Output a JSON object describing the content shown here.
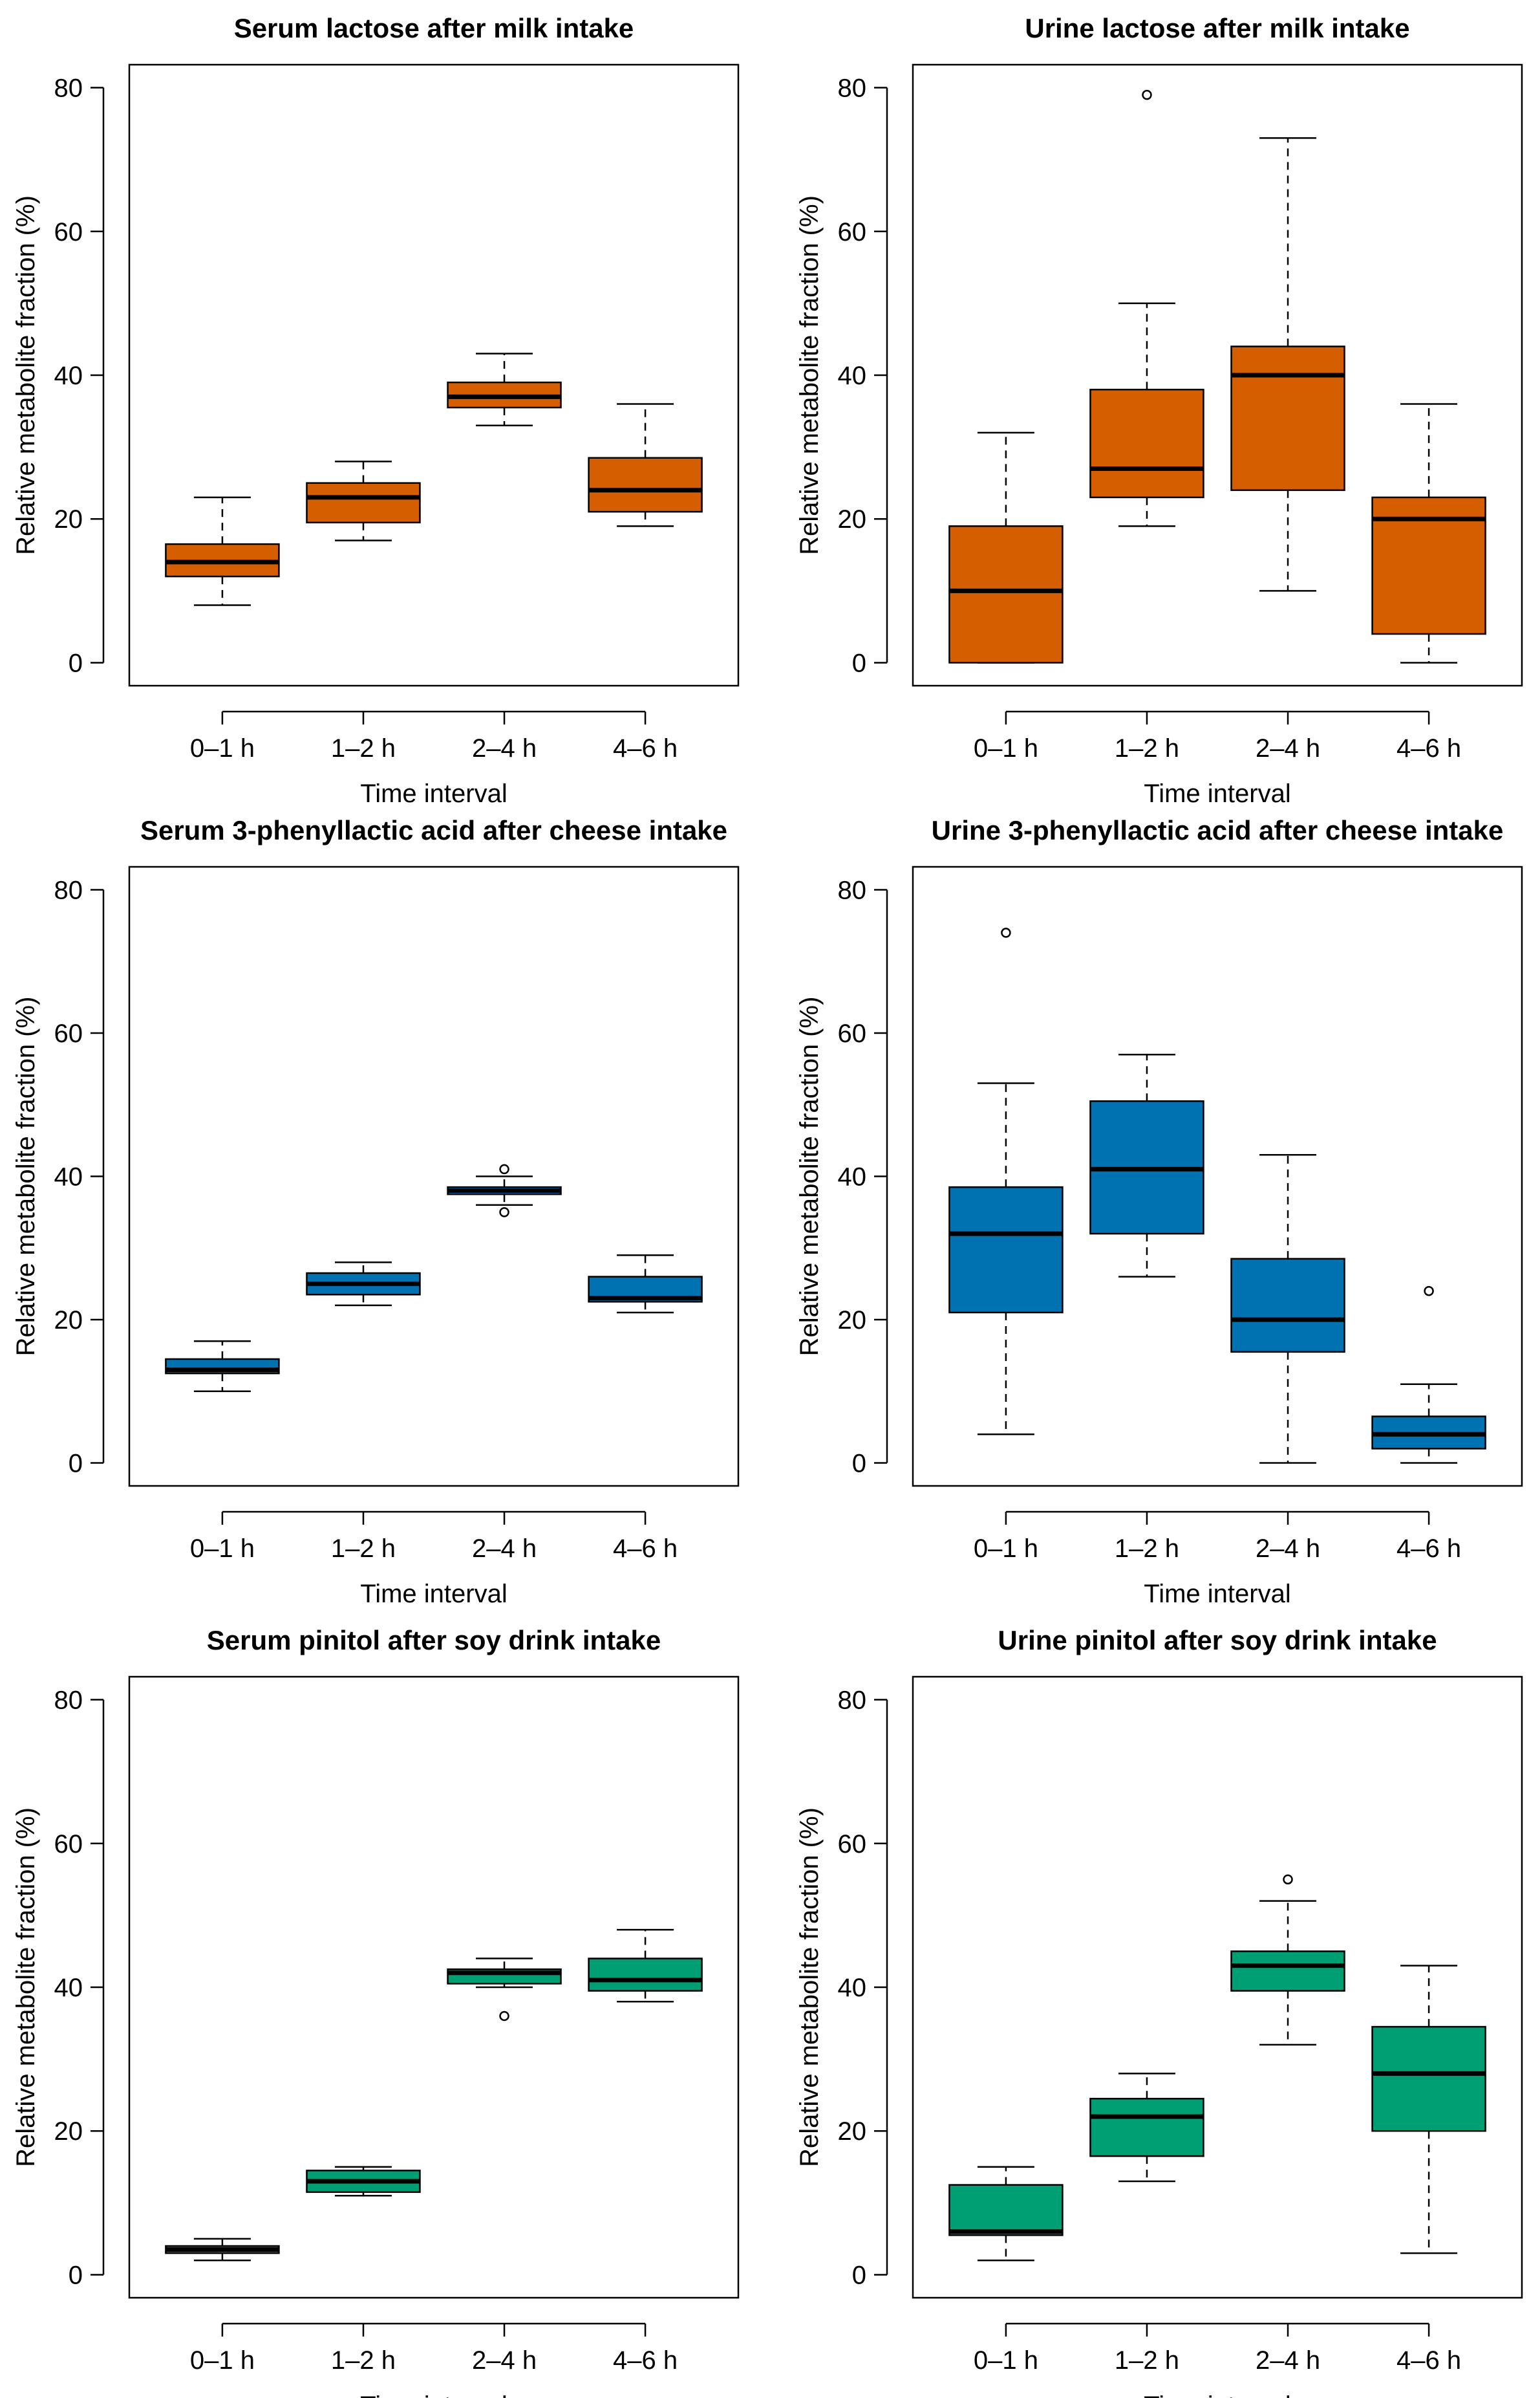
{
  "chart_data": [
    {
      "type": "box",
      "title": "Serum lactose after milk intake",
      "xlabel": "Time interval",
      "ylabel": "Relative metabolite fraction (%)",
      "ylim": [
        0,
        80
      ],
      "yticks": [
        0,
        20,
        40,
        60,
        80
      ],
      "color": "#D55E00",
      "categories": [
        "0–1 h",
        "1–2 h",
        "2–4 h",
        "4–6 h"
      ],
      "boxes": [
        {
          "min": 8,
          "q1": 12,
          "median": 14,
          "q3": 16.5,
          "max": 23,
          "outliers": []
        },
        {
          "min": 17,
          "q1": 19.5,
          "median": 23,
          "q3": 25,
          "max": 28,
          "outliers": []
        },
        {
          "min": 33,
          "q1": 35.5,
          "median": 37,
          "q3": 39,
          "max": 43,
          "outliers": []
        },
        {
          "min": 19,
          "q1": 21,
          "median": 24,
          "q3": 28.5,
          "max": 36,
          "outliers": []
        }
      ]
    },
    {
      "type": "box",
      "title": "Urine lactose after milk intake",
      "xlabel": "Time interval",
      "ylabel": "Relative metabolite fraction (%)",
      "ylim": [
        0,
        80
      ],
      "yticks": [
        0,
        20,
        40,
        60,
        80
      ],
      "color": "#D55E00",
      "categories": [
        "0–1 h",
        "1–2 h",
        "2–4 h",
        "4–6 h"
      ],
      "boxes": [
        {
          "min": 0,
          "q1": 0,
          "median": 10,
          "q3": 19,
          "max": 32,
          "outliers": []
        },
        {
          "min": 19,
          "q1": 23,
          "median": 27,
          "q3": 38,
          "max": 50,
          "outliers": [
            79
          ]
        },
        {
          "min": 10,
          "q1": 24,
          "median": 40,
          "q3": 44,
          "max": 73,
          "outliers": []
        },
        {
          "min": 0,
          "q1": 4,
          "median": 20,
          "q3": 23,
          "max": 36,
          "outliers": []
        }
      ]
    },
    {
      "type": "box",
      "title": "Serum 3-phenyllactic acid after cheese intake",
      "xlabel": "Time interval",
      "ylabel": "Relative metabolite fraction (%)",
      "ylim": [
        0,
        80
      ],
      "yticks": [
        0,
        20,
        40,
        60,
        80
      ],
      "color": "#0072B2",
      "categories": [
        "0–1 h",
        "1–2 h",
        "2–4 h",
        "4–6 h"
      ],
      "boxes": [
        {
          "min": 10,
          "q1": 12.5,
          "median": 13,
          "q3": 14.5,
          "max": 17,
          "outliers": []
        },
        {
          "min": 22,
          "q1": 23.5,
          "median": 25,
          "q3": 26.5,
          "max": 28,
          "outliers": []
        },
        {
          "min": 36,
          "q1": 37.5,
          "median": 38,
          "q3": 38.5,
          "max": 40,
          "outliers": [
            41,
            35
          ]
        },
        {
          "min": 21,
          "q1": 22.5,
          "median": 23,
          "q3": 26,
          "max": 29,
          "outliers": []
        }
      ]
    },
    {
      "type": "box",
      "title": "Urine 3-phenyllactic acid after cheese intake",
      "xlabel": "Time interval",
      "ylabel": "Relative metabolite fraction (%)",
      "ylim": [
        0,
        80
      ],
      "yticks": [
        0,
        20,
        40,
        60,
        80
      ],
      "color": "#0072B2",
      "categories": [
        "0–1 h",
        "1–2 h",
        "2–4 h",
        "4–6 h"
      ],
      "boxes": [
        {
          "min": 4,
          "q1": 21,
          "median": 32,
          "q3": 38.5,
          "max": 53,
          "outliers": [
            74
          ]
        },
        {
          "min": 26,
          "q1": 32,
          "median": 41,
          "q3": 50.5,
          "max": 57,
          "outliers": []
        },
        {
          "min": 0,
          "q1": 15.5,
          "median": 20,
          "q3": 28.5,
          "max": 43,
          "outliers": []
        },
        {
          "min": 0,
          "q1": 2,
          "median": 4,
          "q3": 6.5,
          "max": 11,
          "outliers": [
            24
          ]
        }
      ]
    },
    {
      "type": "box",
      "title": "Serum pinitol after soy drink intake",
      "xlabel": "Time interval",
      "ylabel": "Relative metabolite fraction (%)",
      "ylim": [
        0,
        80
      ],
      "yticks": [
        0,
        20,
        40,
        60,
        80
      ],
      "color": "#009E73",
      "categories": [
        "0–1 h",
        "1–2 h",
        "2–4 h",
        "4–6 h"
      ],
      "boxes": [
        {
          "min": 2,
          "q1": 3,
          "median": 3.5,
          "q3": 4,
          "max": 5,
          "outliers": []
        },
        {
          "min": 11,
          "q1": 11.5,
          "median": 13,
          "q3": 14.5,
          "max": 15,
          "outliers": []
        },
        {
          "min": 40,
          "q1": 40.5,
          "median": 42,
          "q3": 42.5,
          "max": 44,
          "outliers": [
            36
          ]
        },
        {
          "min": 38,
          "q1": 39.5,
          "median": 41,
          "q3": 44,
          "max": 48,
          "outliers": []
        }
      ]
    },
    {
      "type": "box",
      "title": "Urine pinitol after soy drink intake",
      "xlabel": "Time interval",
      "ylabel": "Relative metabolite fraction (%)",
      "ylim": [
        0,
        80
      ],
      "yticks": [
        0,
        20,
        40,
        60,
        80
      ],
      "color": "#009E73",
      "categories": [
        "0–1 h",
        "1–2 h",
        "2–4 h",
        "4–6 h"
      ],
      "boxes": [
        {
          "min": 2,
          "q1": 5.5,
          "median": 6,
          "q3": 12.5,
          "max": 15,
          "outliers": []
        },
        {
          "min": 13,
          "q1": 16.5,
          "median": 22,
          "q3": 24.5,
          "max": 28,
          "outliers": []
        },
        {
          "min": 32,
          "q1": 39.5,
          "median": 43,
          "q3": 45,
          "max": 52,
          "outliers": [
            55
          ]
        },
        {
          "min": 3,
          "q1": 20,
          "median": 28,
          "q3": 34.5,
          "max": 43,
          "outliers": []
        }
      ]
    }
  ]
}
